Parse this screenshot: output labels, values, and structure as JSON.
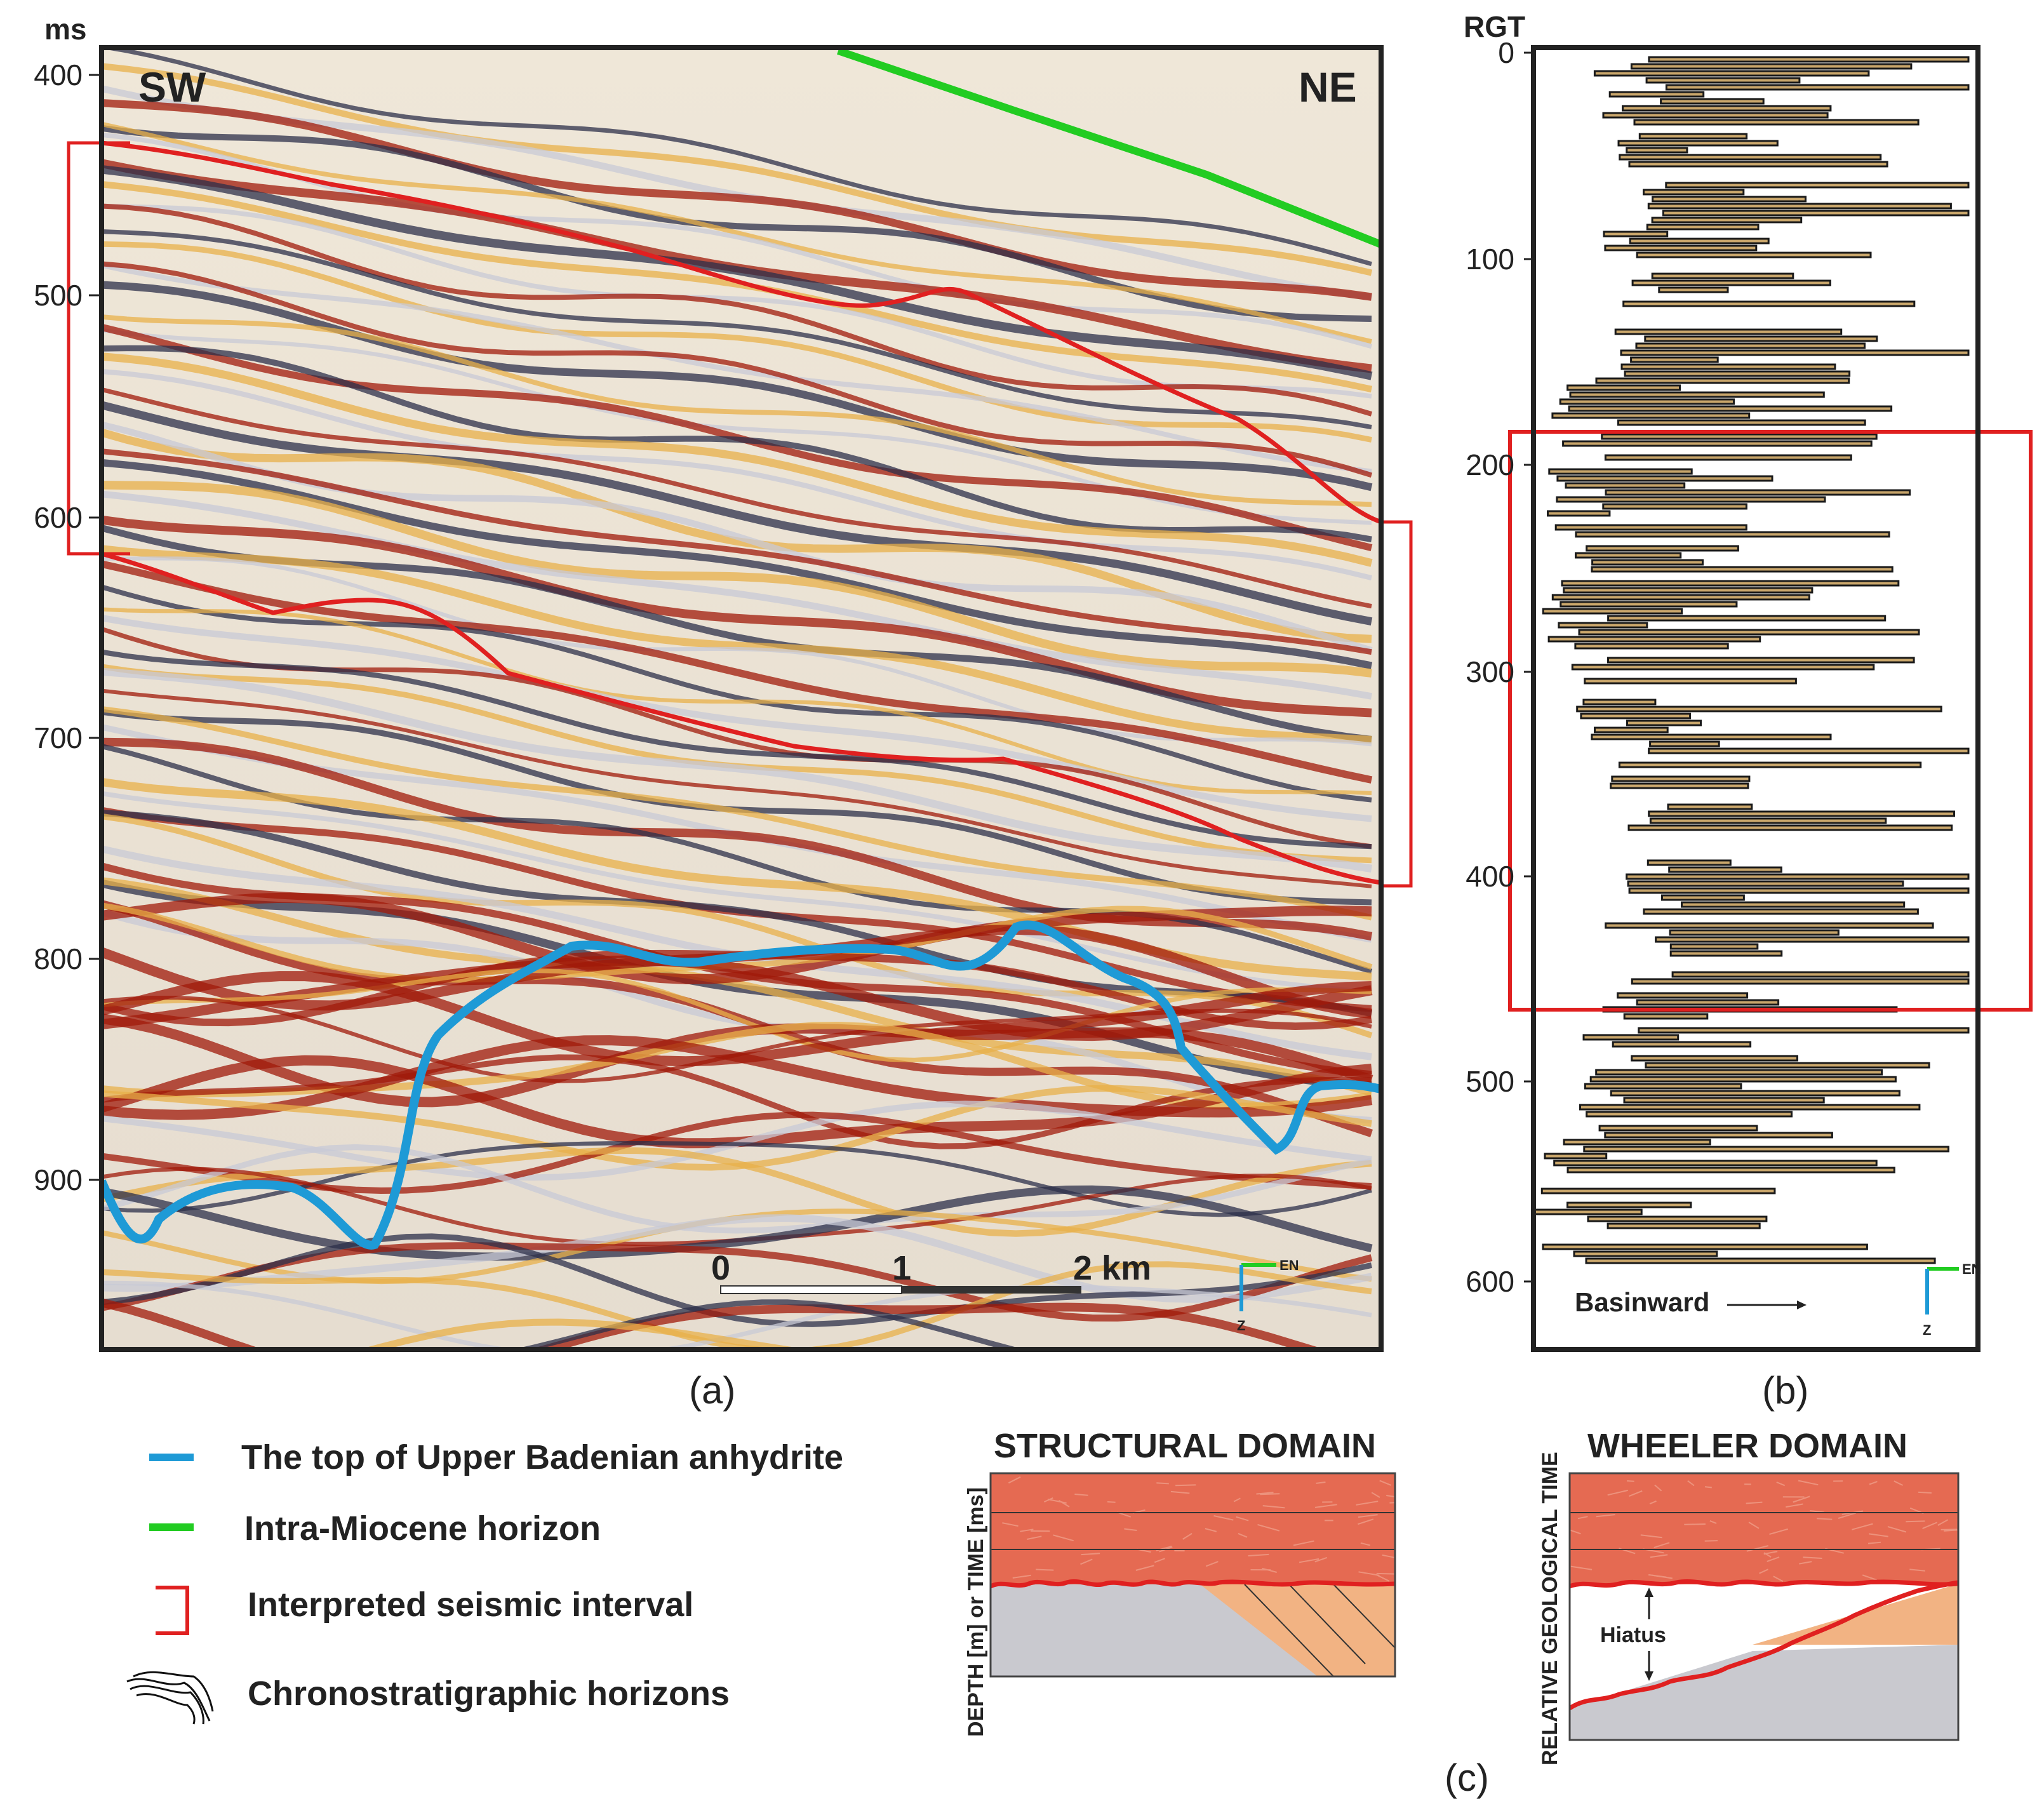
{
  "panel_a": {
    "y_unit": "ms",
    "y_ticks": [
      "400",
      "500",
      "600",
      "700",
      "800",
      "900"
    ],
    "direction_left": "SW",
    "direction_right": "NE",
    "scale_bar": {
      "labels": [
        "0",
        "1",
        "2 km"
      ]
    },
    "orientation": {
      "east": "EN",
      "down": "Z"
    },
    "caption": "(a)"
  },
  "panel_b": {
    "y_label": "RGT",
    "y_ticks": [
      "0",
      "100",
      "200",
      "300",
      "400",
      "500",
      "600"
    ],
    "annotation": "Basinward",
    "orientation": {
      "east": "EN",
      "down": "Z"
    },
    "caption": "(b)"
  },
  "legend": {
    "items": [
      {
        "label": "The top of Upper Badenian anhydrite",
        "color": "#1e9ad6",
        "symbol": "line"
      },
      {
        "label": "Intra-Miocene horizon",
        "color": "#22cc22",
        "symbol": "line"
      },
      {
        "label": "Interpreted seismic interval",
        "color": "#e02020",
        "symbol": "bracket"
      },
      {
        "label": "Chronostratigraphic horizons",
        "color": "#111111",
        "symbol": "squiggle"
      }
    ]
  },
  "panel_c": {
    "structural": {
      "title": "STRUCTURAL DOMAIN",
      "y_label": "DEPTH [m] or TIME [ms]"
    },
    "wheeler": {
      "title": "WHEELER DOMAIN",
      "y_label": "RELATIVE GEOLOGICAL TIME",
      "hiatus_label": "Hiatus"
    },
    "caption": "(c)"
  },
  "colors": {
    "seismic_red": "#a01a0a",
    "seismic_orange": "#e8b04a",
    "seismic_blue": "#2c2f4a",
    "seismic_grey": "#c8cad6",
    "interval_red": "#e02020",
    "anhydrite_blue": "#1e9ad6",
    "miocene_green": "#22cc22"
  }
}
